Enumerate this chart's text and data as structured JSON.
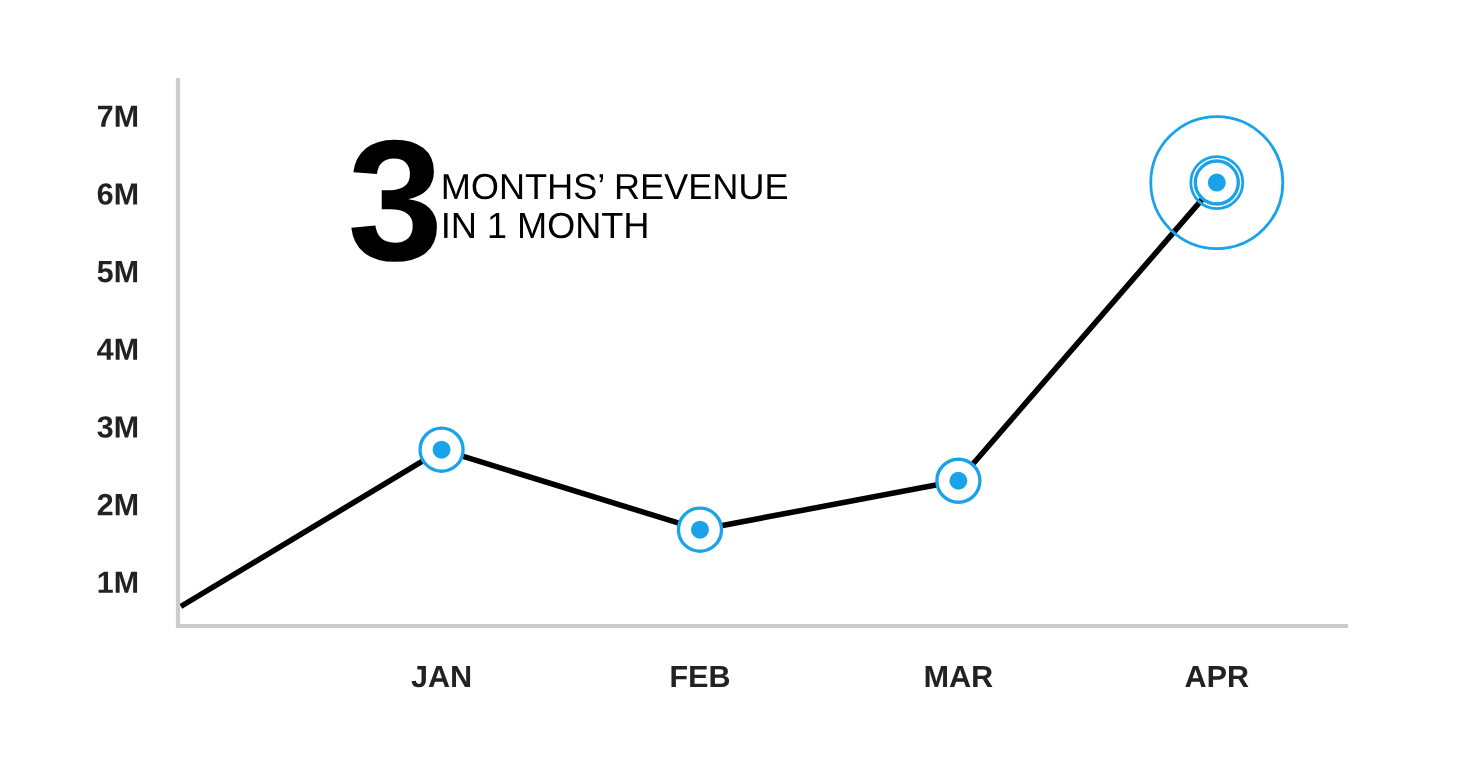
{
  "chart_data": {
    "type": "line",
    "annotations": [
      "3",
      "MONTHS’ REVENUE\nIN 1 MONTH"
    ],
    "categories": [
      null,
      "JAN",
      "FEB",
      "MAR",
      "APR"
    ],
    "series": [
      {
        "color": "#000000",
        "values": [
          0.7,
          2.7,
          1.67,
          2.3,
          6.14
        ],
        "marker": "circle",
        "colors": [
          null,
          "#1aa3e8",
          "#1aa3e8",
          "#1aa3e8",
          "#1aa3e8"
        ]
      }
    ],
    "ylim": [
      0.43,
      7.46
    ],
    "yticks": [
      {
        "value": 1,
        "label": "1M"
      },
      {
        "value": 2,
        "label": "2M"
      },
      {
        "value": 3,
        "label": "3M"
      },
      {
        "value": 4,
        "label": "4M"
      },
      {
        "value": 5,
        "label": "5M"
      },
      {
        "value": 6,
        "label": "6M"
      },
      {
        "value": 7,
        "label": "7M"
      }
    ],
    "grid": false
  }
}
